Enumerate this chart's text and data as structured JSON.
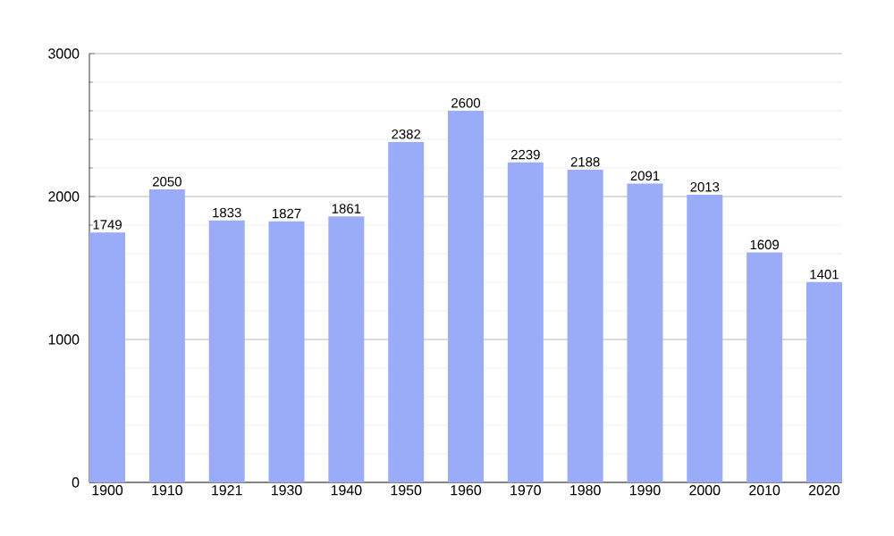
{
  "chart_data": {
    "type": "bar",
    "categories": [
      "1900",
      "1910",
      "1921",
      "1930",
      "1940",
      "1950",
      "1960",
      "1970",
      "1980",
      "1990",
      "2000",
      "2010",
      "2020"
    ],
    "values": [
      1749,
      2050,
      1833,
      1827,
      1861,
      2382,
      2600,
      2239,
      2188,
      2091,
      2013,
      1609,
      1401
    ],
    "color": "#9aabf8",
    "ylim": [
      0,
      3000
    ],
    "yticks": [
      0,
      1000,
      2000,
      3000
    ],
    "grid": "y",
    "data_labels": true
  }
}
